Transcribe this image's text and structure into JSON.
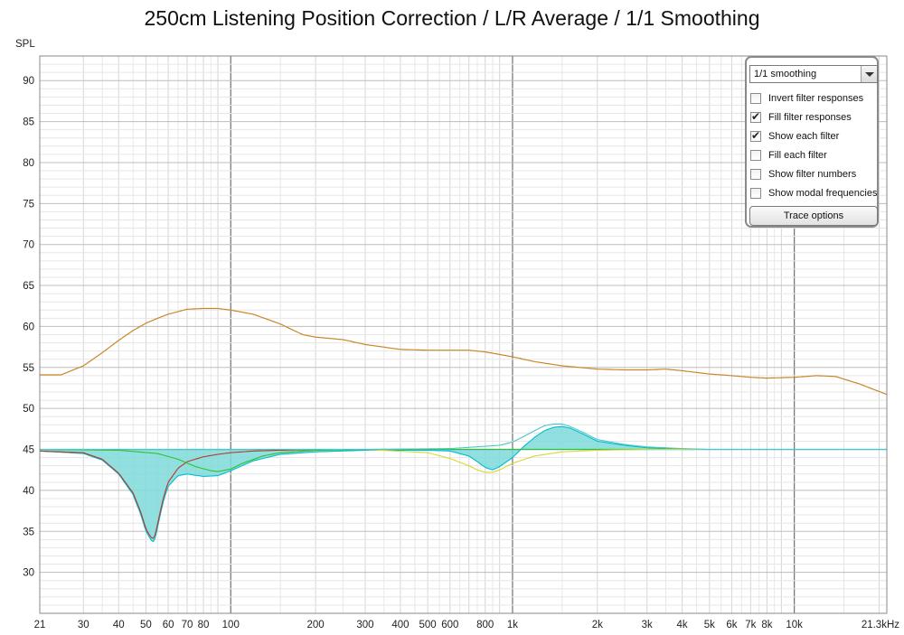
{
  "chart_data": {
    "type": "line",
    "title": "250cm Listening Position Correction / L/R Average / 1/1 Smoothing",
    "ylabel": "SPL",
    "xlabel": "",
    "x_scale": "log",
    "xlim": [
      21,
      21300
    ],
    "ylim": [
      25,
      93
    ],
    "x_tick_labels": [
      {
        "value": 21,
        "label": "21"
      },
      {
        "value": 30,
        "label": "30"
      },
      {
        "value": 40,
        "label": "40"
      },
      {
        "value": 50,
        "label": "50"
      },
      {
        "value": 60,
        "label": "60"
      },
      {
        "value": 70,
        "label": "70"
      },
      {
        "value": 80,
        "label": "80"
      },
      {
        "value": 100,
        "label": "100"
      },
      {
        "value": 200,
        "label": "200"
      },
      {
        "value": 300,
        "label": "300"
      },
      {
        "value": 400,
        "label": "400"
      },
      {
        "value": 500,
        "label": "500"
      },
      {
        "value": 600,
        "label": "600"
      },
      {
        "value": 800,
        "label": "800"
      },
      {
        "value": 1000,
        "label": "1k"
      },
      {
        "value": 2000,
        "label": "2k"
      },
      {
        "value": 3000,
        "label": "3k"
      },
      {
        "value": 4000,
        "label": "4k"
      },
      {
        "value": 5000,
        "label": "5k"
      },
      {
        "value": 6000,
        "label": "6k"
      },
      {
        "value": 7000,
        "label": "7k"
      },
      {
        "value": 8000,
        "label": "8k"
      },
      {
        "value": 10000,
        "label": "10k"
      },
      {
        "value": 21300,
        "label": "21.3kHz"
      }
    ],
    "y_ticks": [
      30,
      35,
      40,
      45,
      50,
      55,
      60,
      65,
      70,
      75,
      80,
      85,
      90
    ],
    "grid": true,
    "series": [
      {
        "color": "#c8872a",
        "x": [
          21,
          25,
          30,
          35,
          40,
          45,
          50,
          55,
          60,
          70,
          80,
          90,
          100,
          120,
          150,
          180,
          200,
          250,
          300,
          400,
          500,
          600,
          700,
          800,
          1000,
          1200,
          1500,
          2000,
          2500,
          3000,
          3500,
          4000,
          5000,
          6000,
          7000,
          8000,
          10000,
          12000,
          14000,
          17000,
          21300
        ],
        "y": [
          54.1,
          54.1,
          55.2,
          56.8,
          58.3,
          59.5,
          60.4,
          61.0,
          61.5,
          62.1,
          62.2,
          62.2,
          62.0,
          61.5,
          60.3,
          59.0,
          58.7,
          58.4,
          57.8,
          57.2,
          57.1,
          57.1,
          57.1,
          56.9,
          56.3,
          55.7,
          55.2,
          54.8,
          54.7,
          54.7,
          54.8,
          54.6,
          54.2,
          54.0,
          53.8,
          53.7,
          53.8,
          54.0,
          53.9,
          53.0,
          51.7
        ]
      },
      {
        "color": "#00bcd0",
        "x": [
          21,
          30,
          35,
          40,
          45,
          48,
          50,
          52,
          53,
          54,
          56,
          58,
          60,
          65,
          70,
          80,
          90,
          100,
          120,
          150,
          200,
          300,
          400,
          500,
          600,
          700,
          750,
          800,
          850,
          900,
          1000,
          1100,
          1200,
          1300,
          1400,
          1500,
          1600,
          1800,
          2000,
          2500,
          3000,
          4000,
          5000,
          10000,
          21300
        ],
        "y": [
          44.8,
          44.5,
          43.7,
          42.0,
          39.5,
          37.0,
          35.0,
          34.0,
          33.7,
          34.2,
          36.8,
          39.0,
          40.5,
          41.8,
          42.0,
          41.7,
          41.8,
          42.4,
          43.6,
          44.4,
          44.7,
          44.9,
          44.9,
          44.9,
          44.8,
          44.2,
          43.5,
          42.8,
          42.5,
          42.9,
          44.0,
          45.4,
          46.5,
          47.3,
          47.7,
          47.8,
          47.6,
          46.8,
          46.0,
          45.5,
          45.2,
          45.0,
          45.0,
          45.0,
          45.0
        ]
      },
      {
        "color": "#b33a2c",
        "x": [
          21,
          30,
          35,
          40,
          45,
          48,
          50,
          52,
          53,
          54,
          56,
          58,
          60,
          65,
          70,
          80,
          90,
          100,
          120,
          150,
          200,
          300,
          1000,
          21300
        ],
        "y": [
          44.8,
          44.6,
          43.8,
          42.1,
          39.7,
          37.3,
          35.3,
          34.3,
          34.1,
          34.6,
          37.2,
          39.4,
          41.0,
          42.7,
          43.5,
          44.1,
          44.4,
          44.6,
          44.8,
          44.9,
          45.0,
          45.0,
          45.0,
          45.0
        ]
      },
      {
        "color": "#2ec22e",
        "x": [
          21,
          40,
          55,
          65,
          75,
          85,
          90,
          100,
          110,
          130,
          150,
          200,
          300,
          1000,
          21300
        ],
        "y": [
          45.0,
          44.9,
          44.5,
          43.8,
          42.9,
          42.4,
          42.3,
          42.6,
          43.3,
          44.2,
          44.6,
          44.9,
          45.0,
          45.0,
          45.0
        ]
      },
      {
        "color": "#d7d730",
        "x": [
          21,
          300,
          500,
          600,
          700,
          750,
          800,
          850,
          900,
          1000,
          1200,
          1500,
          2000,
          3000,
          21300
        ],
        "y": [
          45.0,
          45.0,
          44.6,
          43.9,
          43.0,
          42.5,
          42.2,
          42.2,
          42.5,
          43.3,
          44.2,
          44.7,
          44.9,
          45.0,
          45.0
        ]
      },
      {
        "color": "#4ec6c6",
        "x": [
          21,
          300,
          600,
          900,
          1000,
          1100,
          1200,
          1300,
          1400,
          1500,
          1600,
          1800,
          2000,
          2500,
          3000,
          4000,
          5000,
          21300
        ],
        "y": [
          45.0,
          45.0,
          45.1,
          45.5,
          45.9,
          46.6,
          47.3,
          47.9,
          48.1,
          48.1,
          47.8,
          47.0,
          46.2,
          45.6,
          45.3,
          45.1,
          45.0,
          45.0
        ]
      }
    ],
    "reference_line": 45
  },
  "controls": {
    "smoothing_value": "1/1 smoothing",
    "options": [
      {
        "label": "Invert filter responses",
        "checked": false
      },
      {
        "label": "Fill filter responses",
        "checked": true
      },
      {
        "label": "Show each filter",
        "checked": true
      },
      {
        "label": "Fill each filter",
        "checked": false
      },
      {
        "label": "Show filter numbers",
        "checked": false
      },
      {
        "label": "Show modal frequencies",
        "checked": false
      }
    ],
    "trace_options_label": "Trace options"
  },
  "colors": {
    "fill": "#7fd9d9",
    "grid_minor": "#d6d6d6",
    "grid_major": "#707070",
    "reference": "#3fb8b8"
  }
}
